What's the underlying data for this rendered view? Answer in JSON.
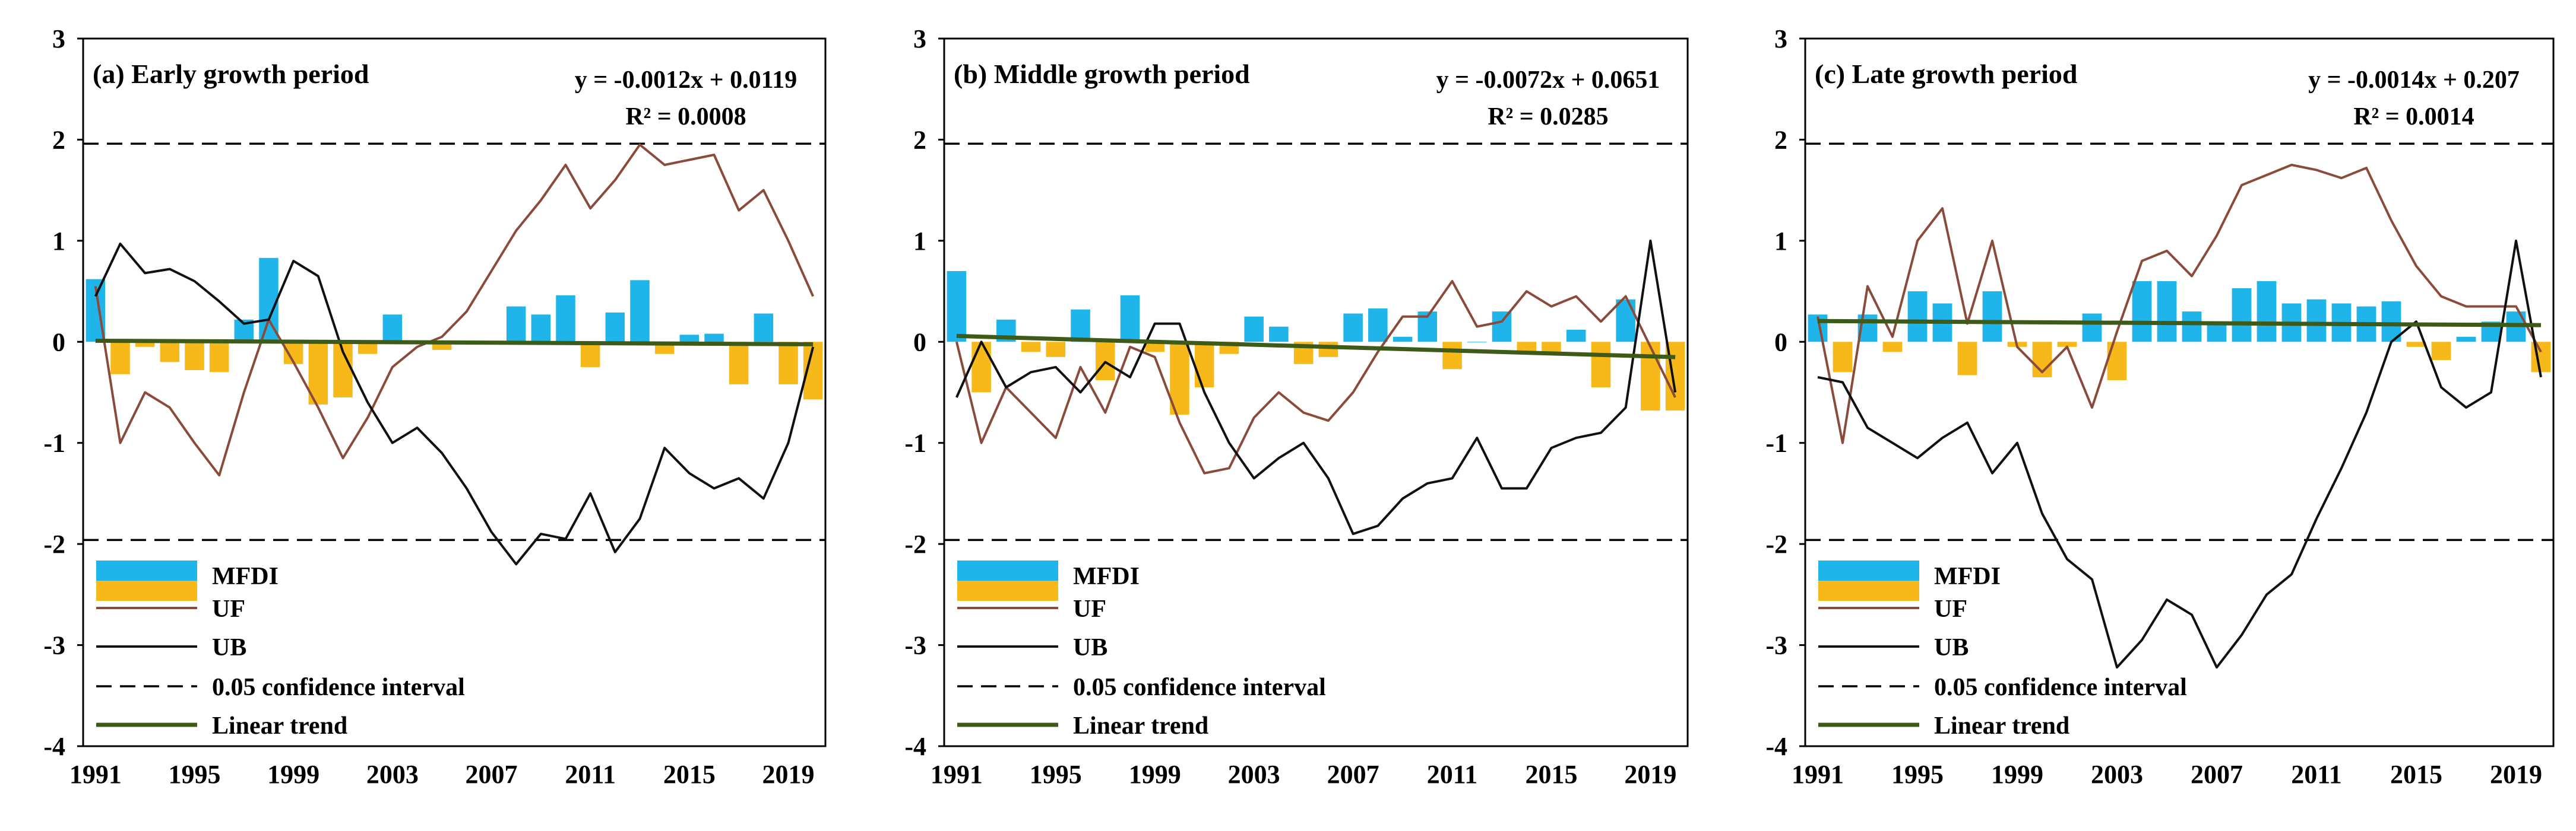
{
  "figure": {
    "legend_labels": {
      "mfdi": "MFDI",
      "uf": "UF",
      "ub": "UB",
      "ci": "0.05 confidence interval",
      "trend": "Linear trend"
    },
    "colors": {
      "mfdi_pos": "#1fb4ea",
      "mfdi_neg": "#f7b81a",
      "uf": "#8b4b3a",
      "ub": "#111111",
      "ci": "#000000",
      "trend": "#3d5a18"
    }
  },
  "chart_data": [
    {
      "type": "bar+line",
      "title": "(a) Early growth period",
      "equation": "y = -0.0012x + 0.0119",
      "r2": "R² = 0.0008",
      "x_range": [
        1991,
        2020
      ],
      "x_ticks": [
        1991,
        1995,
        1999,
        2003,
        2007,
        2011,
        2015,
        2019
      ],
      "y_ticks": [
        3,
        2,
        1,
        0,
        -1,
        -2,
        -3,
        -4
      ],
      "ylim": [
        -4,
        3
      ],
      "confidence_interval": [
        1.96,
        -1.96
      ],
      "trend": {
        "slope": -0.0012,
        "intercept": 0.0119
      },
      "years": [
        1991,
        1992,
        1993,
        1994,
        1995,
        1996,
        1997,
        1998,
        1999,
        2000,
        2001,
        2002,
        2003,
        2004,
        2005,
        2006,
        2007,
        2008,
        2009,
        2010,
        2011,
        2012,
        2013,
        2014,
        2015,
        2016,
        2017,
        2018,
        2019,
        2020
      ],
      "series": [
        {
          "name": "MFDI",
          "type": "bar",
          "values": [
            0.62,
            -0.32,
            -0.05,
            -0.2,
            -0.28,
            -0.3,
            0.22,
            0.83,
            -0.22,
            -0.62,
            -0.55,
            -0.12,
            0.27,
            -0.02,
            -0.08,
            -0.02,
            0.0,
            0.35,
            0.27,
            0.46,
            -0.25,
            0.29,
            0.61,
            -0.12,
            0.07,
            0.08,
            -0.42,
            0.28,
            -0.42,
            -0.57
          ]
        },
        {
          "name": "UF",
          "type": "line",
          "values": [
            0.55,
            -1.0,
            -0.5,
            -0.65,
            -1.0,
            -1.32,
            -0.5,
            0.22,
            -0.2,
            -0.65,
            -1.15,
            -0.75,
            -0.25,
            -0.05,
            0.05,
            0.3,
            0.7,
            1.1,
            1.4,
            1.75,
            1.32,
            1.6,
            1.95,
            1.75,
            1.8,
            1.85,
            1.3,
            1.5,
            1.0,
            0.45
          ]
        },
        {
          "name": "UB",
          "type": "line",
          "values": [
            0.45,
            0.97,
            0.68,
            0.72,
            0.6,
            0.4,
            0.18,
            0.22,
            0.8,
            0.65,
            -0.1,
            -0.6,
            -1.0,
            -0.85,
            -1.1,
            -1.45,
            -1.88,
            -2.2,
            -1.9,
            -1.95,
            -1.5,
            -2.08,
            -1.75,
            -1.05,
            -1.3,
            -1.45,
            -1.35,
            -1.55,
            -1.0,
            -0.05
          ]
        }
      ]
    },
    {
      "type": "bar+line",
      "title": "(b) Middle growth period",
      "equation": "y = -0.0072x + 0.0651",
      "r2": "R² = 0.0285",
      "x_range": [
        1991,
        2020
      ],
      "x_ticks": [
        1991,
        1995,
        1999,
        2003,
        2007,
        2011,
        2015,
        2019
      ],
      "y_ticks": [
        3,
        2,
        1,
        0,
        -1,
        -2,
        -3,
        -4
      ],
      "ylim": [
        -4,
        3
      ],
      "confidence_interval": [
        1.96,
        -1.96
      ],
      "trend": {
        "slope": -0.0072,
        "intercept": 0.0651
      },
      "years": [
        1991,
        1992,
        1993,
        1994,
        1995,
        1996,
        1997,
        1998,
        1999,
        2000,
        2001,
        2002,
        2003,
        2004,
        2005,
        2006,
        2007,
        2008,
        2009,
        2010,
        2011,
        2012,
        2013,
        2014,
        2015,
        2016,
        2017,
        2018,
        2019,
        2020
      ],
      "series": [
        {
          "name": "MFDI",
          "type": "bar",
          "values": [
            0.7,
            -0.5,
            0.22,
            -0.1,
            -0.15,
            0.32,
            -0.38,
            0.46,
            -0.1,
            -0.72,
            -0.45,
            -0.12,
            0.25,
            0.15,
            -0.22,
            -0.15,
            0.28,
            0.33,
            0.05,
            0.3,
            -0.27,
            0.0,
            0.3,
            -0.12,
            -0.12,
            0.12,
            -0.45,
            0.42,
            -0.68,
            -0.68
          ]
        },
        {
          "name": "UF",
          "type": "line",
          "values": [
            0.0,
            -1.0,
            -0.45,
            -0.7,
            -0.95,
            -0.25,
            -0.7,
            -0.05,
            -0.15,
            -0.8,
            -1.3,
            -1.25,
            -0.75,
            -0.5,
            -0.7,
            -0.78,
            -0.5,
            -0.1,
            0.25,
            0.25,
            0.6,
            0.15,
            0.2,
            0.5,
            0.35,
            0.45,
            0.2,
            0.45,
            -0.05,
            -0.55
          ]
        },
        {
          "name": "UB",
          "type": "line",
          "values": [
            -0.55,
            0.0,
            -0.45,
            -0.3,
            -0.25,
            -0.5,
            -0.2,
            -0.35,
            0.18,
            0.18,
            -0.5,
            -1.0,
            -1.35,
            -1.15,
            -1.0,
            -1.35,
            -1.9,
            -1.82,
            -1.55,
            -1.4,
            -1.35,
            -0.95,
            -1.45,
            -1.45,
            -1.05,
            -0.95,
            -0.9,
            -0.65,
            1.0,
            -0.5
          ]
        }
      ]
    },
    {
      "type": "bar+line",
      "title": "(c) Late growth period",
      "equation": "y = -0.0014x + 0.207",
      "r2": "R² = 0.0014",
      "x_range": [
        1991,
        2020
      ],
      "x_ticks": [
        1991,
        1995,
        1999,
        2003,
        2007,
        2011,
        2015,
        2019
      ],
      "y_ticks": [
        3,
        2,
        1,
        0,
        -1,
        -2,
        -3,
        -4
      ],
      "ylim": [
        -4,
        3
      ],
      "confidence_interval": [
        1.96,
        -1.96
      ],
      "trend": {
        "slope": -0.0014,
        "intercept": 0.207
      },
      "years": [
        1991,
        1992,
        1993,
        1994,
        1995,
        1996,
        1997,
        1998,
        1999,
        2000,
        2001,
        2002,
        2003,
        2004,
        2005,
        2006,
        2007,
        2008,
        2009,
        2010,
        2011,
        2012,
        2013,
        2014,
        2015,
        2016,
        2017,
        2018,
        2019,
        2020
      ],
      "series": [
        {
          "name": "MFDI",
          "type": "bar",
          "values": [
            0.27,
            -0.3,
            0.27,
            -0.1,
            0.5,
            0.38,
            -0.33,
            0.5,
            -0.05,
            -0.35,
            -0.05,
            0.28,
            -0.38,
            0.6,
            0.6,
            0.3,
            0.2,
            0.53,
            0.6,
            0.38,
            0.42,
            0.38,
            0.35,
            0.4,
            -0.05,
            -0.18,
            0.05,
            0.2,
            0.3,
            -0.3
          ]
        },
        {
          "name": "UF",
          "type": "line",
          "values": [
            0.25,
            -1.0,
            0.55,
            0.05,
            1.0,
            1.32,
            0.18,
            1.0,
            -0.05,
            -0.3,
            -0.05,
            -0.65,
            0.1,
            0.8,
            0.9,
            0.65,
            1.05,
            1.55,
            1.65,
            1.75,
            1.7,
            1.62,
            1.72,
            1.2,
            0.75,
            0.45,
            0.35,
            0.35,
            0.35,
            -0.1
          ]
        },
        {
          "name": "UB",
          "type": "line",
          "values": [
            -0.35,
            -0.4,
            -0.85,
            -1.0,
            -1.15,
            -0.95,
            -0.8,
            -1.3,
            -1.0,
            -1.7,
            -2.15,
            -2.35,
            -3.22,
            -2.95,
            -2.55,
            -2.7,
            -3.22,
            -2.9,
            -2.5,
            -2.3,
            -1.75,
            -1.25,
            -0.7,
            0.0,
            0.2,
            -0.45,
            -0.65,
            -0.5,
            1.0,
            -0.35
          ]
        }
      ]
    }
  ]
}
